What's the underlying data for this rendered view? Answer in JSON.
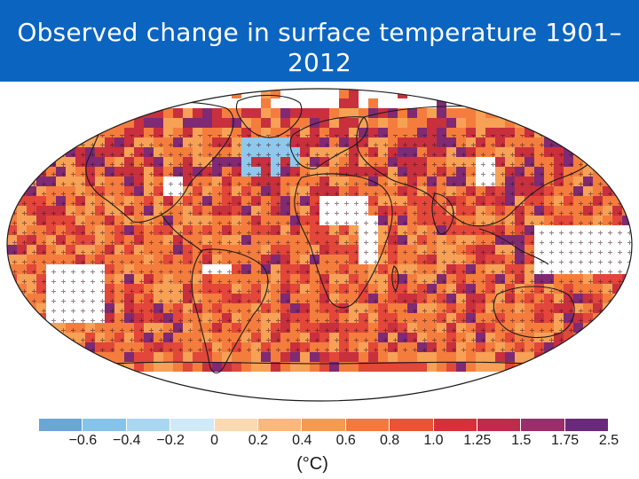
{
  "title_line1": "Observed change in surface temperature 1901–",
  "title_line2": "2012",
  "header_small_text": "",
  "legend": {
    "unit": "(°C)",
    "ticks": [
      "−0.6",
      "−0.4",
      "−0.2",
      "0",
      "0.2",
      "0.4",
      "0.6",
      "0.8",
      "1.0",
      "1.25",
      "1.5",
      "1.75",
      "2.5"
    ],
    "colors": [
      "#6aa6d6",
      "#86c3ea",
      "#a9d7f2",
      "#cfe9f7",
      "#fcd9b0",
      "#fbb878",
      "#f89a4d",
      "#f47a3c",
      "#ea5432",
      "#d6303a",
      "#c02a4b",
      "#9c2c6a",
      "#6a2a7b"
    ]
  },
  "map": {
    "colors": {
      "ocean_bg": "#ffffff",
      "land_outline": "#1b1b1b",
      "cell_cool": "#8fc8ec",
      "cell_light_orange": "#f7a156",
      "cell_orange": "#f47d3e",
      "cell_red": "#e2473a",
      "cell_dark_red": "#c8303d",
      "cell_purple": "#7f2a73"
    }
  }
}
